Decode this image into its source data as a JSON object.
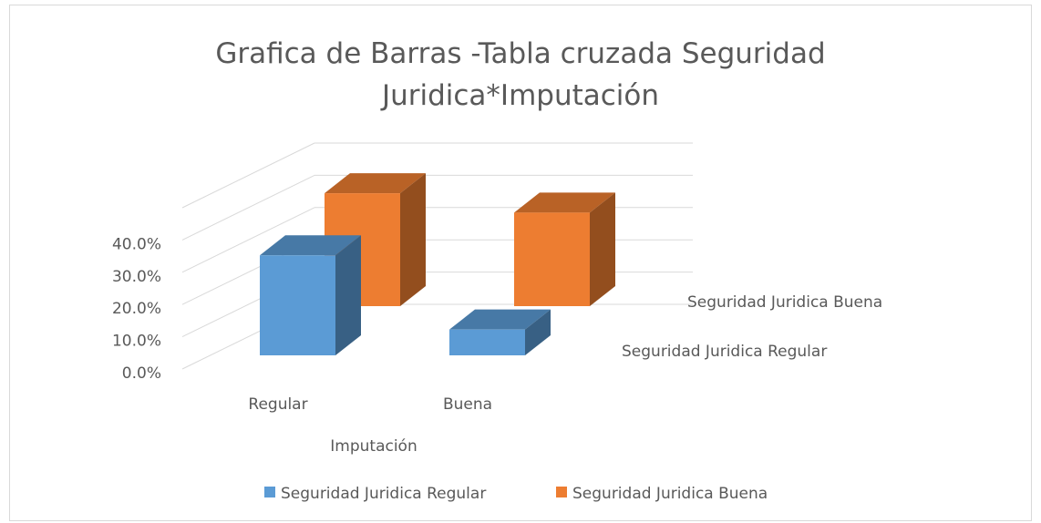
{
  "chart_data": {
    "type": "bar3d",
    "title": "Grafica de Barras -Tabla cruzada Seguridad Juridica*Imputación",
    "xlabel": "Imputación",
    "categories": [
      "Regular",
      "Buena"
    ],
    "series": [
      {
        "name": "Seguridad Juridica Regular",
        "color": "#5b9bd5",
        "values": [
          31,
          8
        ]
      },
      {
        "name": "Seguridad Juridica Buena",
        "color": "#ed7d31",
        "values": [
          35,
          29
        ]
      }
    ],
    "ylim": [
      0,
      50
    ],
    "yticks": [
      {
        "value": 0,
        "label": "0.0%"
      },
      {
        "value": 10,
        "label": "10.0%"
      },
      {
        "value": 20,
        "label": "20.0%"
      },
      {
        "value": 30,
        "label": "30.0%"
      },
      {
        "value": 40,
        "label": "40.0%"
      }
    ],
    "grid": true,
    "legend": "bottom"
  }
}
